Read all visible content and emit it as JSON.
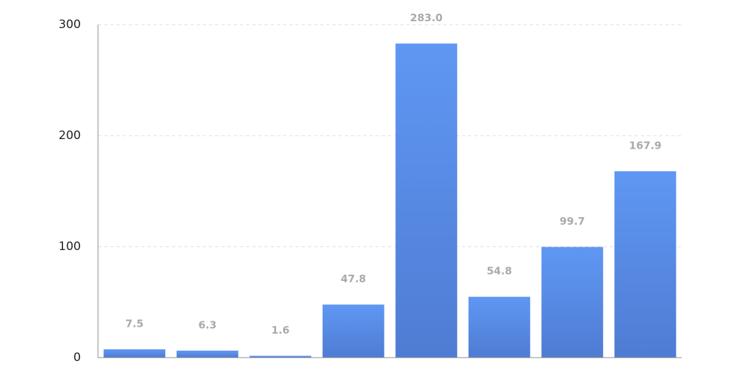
{
  "chart_data": {
    "type": "bar",
    "categories": [
      null,
      null,
      null,
      null,
      null,
      null,
      null,
      null
    ],
    "values": [
      7.5,
      6.3,
      1.6,
      47.8,
      283.0,
      54.8,
      99.7,
      167.9
    ],
    "value_labels": [
      "7.5",
      "6.3",
      "1.6",
      "47.8",
      "283.0",
      "54.8",
      "99.7",
      "167.9"
    ],
    "color": "#5b8ff0",
    "ylim": [
      0,
      300
    ],
    "yticks": [
      0,
      100,
      200,
      300
    ],
    "grid": true
  }
}
